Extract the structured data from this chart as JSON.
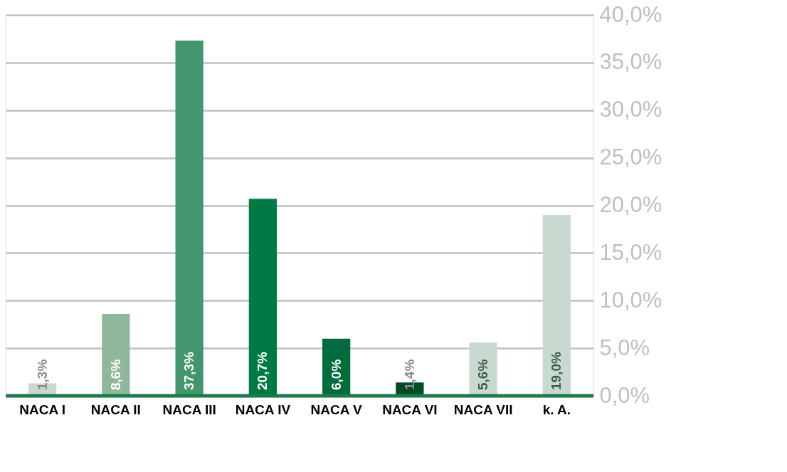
{
  "chart_data": {
    "type": "bar",
    "categories": [
      "NACA I",
      "NACA II",
      "NACA III",
      "NACA IV",
      "NACA V",
      "NACA VI",
      "NACA VII",
      "k. A."
    ],
    "values": [
      1.3,
      8.6,
      37.3,
      20.7,
      6.0,
      1.4,
      5.6,
      19.0
    ],
    "colors": [
      "#c8d9cf",
      "#8fb89a",
      "#42956d",
      "#007a45",
      "#006b3c",
      "#004d24",
      "#c8d9cf",
      "#c8d9cf"
    ],
    "value_labels": [
      "1,3%",
      "8,6%",
      "37,3%",
      "20,7%",
      "6,0%",
      "1,4%",
      "5,6%",
      "19,0%"
    ],
    "ylim": [
      0,
      40
    ],
    "yticks": [
      {
        "value": 0,
        "label": "0,0%"
      },
      {
        "value": 5,
        "label": "5,0%"
      },
      {
        "value": 10,
        "label": "10,0%"
      },
      {
        "value": 15,
        "label": "15,0%"
      },
      {
        "value": 20,
        "label": "20,0%"
      },
      {
        "value": 25,
        "label": "25,0%"
      },
      {
        "value": 30,
        "label": "30,0%"
      },
      {
        "value": 35,
        "label": "35,0%"
      },
      {
        "value": 40,
        "label": "40,0%"
      }
    ],
    "grid": "y"
  }
}
